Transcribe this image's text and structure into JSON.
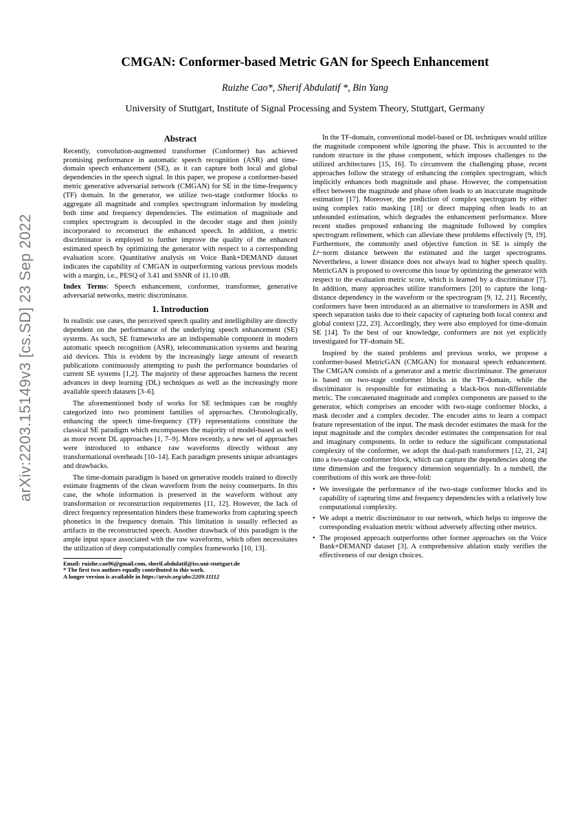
{
  "arxiv_stamp": "arXiv:2203.15149v3  [cs.SD]  23 Sep 2022",
  "title_text": "CMGAN: Conformer-based Metric GAN for Speech Enhancement",
  "authors_text": "Ruizhe Cao*, Sherif Abdulatif *, Bin Yang",
  "affiliation": "University of Stuttgart, Institute of Signal Processing and System Theory, Stuttgart, Germany",
  "abstract_head": "Abstract",
  "abstract_body": "Recently, convolution-augmented transformer (Conformer) has achieved promising performance in automatic speech recognition (ASR) and time-domain speech enhancement (SE), as it can capture both local and global dependencies in the speech signal. In this paper, we propose a conformer-based metric generative adversarial network (CMGAN) for SE in the time-frequency (TF) domain. In the generator, we utilize two-stage conformer blocks to aggregate all magnitude and complex spectrogram information by modeling both time and frequency dependencies. The estimation of magnitude and complex spectrogram is decoupled in the decoder stage and then jointly incorporated to reconstruct the enhanced speech. In addition, a metric discriminator is employed to further improve the quality of the enhanced estimated speech by optimizing the generator with respect to a corresponding evaluation score. Quantitative analysis on Voice Bank+DEMAND dataset indicates the capability of CMGAN in outperforming various previous models with a margin, i.e., PESQ of 3.41 and SSNR of 11.10 dB.",
  "index_terms_label": "Index Terms",
  "index_terms_body": ": Speech enhancement, conformer, transformer, generative adversarial networks, metric discriminator.",
  "section1_head": "1. Introduction",
  "intro_p1": "In realistic use cases, the perceived speech quality and intelligibility are directly dependent on the performance of the underlying speech enhancement (SE) systems. As such, SE frameworks are an indispensable component in modern automatic speech recognition (ASR), telecommunication systems and hearing aid devices. This is evident by the increasingly large amount of research publications continuously attempting to push the performance boundaries of current SE systems [1,2]. The majority of these approaches harness the recent advances in deep learning (DL) techniques as well as the increasingly more available speech datasets [3–6].",
  "intro_p2": "The aforementioned body of works for SE techniques can be roughly categorized into two prominent families of approaches. Chronologically, enhancing the speech time-frequency (TF) representations constitute the classical SE paradigm which encompasses the majority of model-based as well as more recent DL approaches [1, 7–9]. More recently, a new set of approaches were introduced to enhance raw waveforms directly without any transformational overheads [10–14]. Each paradigm presents unique advantages and drawbacks.",
  "intro_p3": "The time-domain paradigm is based on generative models trained to directly estimate fragments of the clean waveform from the noisy counterparts. In this case, the whole information is preserved in the waveform without any transformation or reconstruction requirements [11, 12]. However, the lack of direct frequency representation hinders these frameworks from capturing speech phonetics in the frequency domain. This limitation is usually reflected as artifacts in the reconstructed speech. Another drawback of this paradigm is the ample input space associated with the raw waveforms, which often necessitates the utilization of deep computationally complex frameworks [10, 13].",
  "col2_p1_a": "In the TF-domain, conventional model-based or DL techniques would utilize the magnitude component while ignoring the phase. This is accounted to the random structure in the phase component, which imposes challenges to the utilized architectures [15, 16]. To circumvent the challenging phase, recent approaches follow the strategy of enhancing the complex spectrogram, which implicitly enhances both magnitude and phase. However, the compensation effect between the magnitude and phase often leads to an inaccurate magnitude estimation [17]. Moreover, the prediction of complex spectrogram by either using complex ratio masking [18] or direct mapping often leads to an unbounded estimation, which degrades the enhancement performance. More recent studies proposed enhancing the magnitude followed by complex spectrogram refinement, which can alleviate these problems effectively [9, 19]. Furthermore, the commonly used objective function in SE is simply the ",
  "col2_p1_lp": "Lᵖ",
  "col2_p1_b": "−norm distance between the estimated and the target spectrograms. Nevertheless, a lower distance does not always lead to higher speech quality. MetricGAN is proposed to overcome this issue by optimizing the generator with respect to the evaluation metric score, which is learned by a discriminator [7]. In addition, many approaches utilize transformers [20] to capture the long-distance dependency in the waveform or the spectrogram [9, 12, 21]. Recently, conformers have been introduced as an alternative to transformers in ASR and speech separation tasks due to their capacity of capturing both local context and global context [22, 23]. Accordingly, they were also employed for time-domain SE [14]. To the best of our knowledge, conformers are not yet explicitly investigated for TF-domain SE.",
  "col2_p2": "Inspired by the stated problems and previous works, we propose a conformer-based MetricGAN (CMGAN) for monaural speech enhancement. The CMGAN consists of a generator and a metric discriminator. The generator is based on two-stage conformer blocks in the TF-domain, while the discriminator is responsible for estimating a black-box non-differentiable metric. The concatenated magnitude and complex components are passed to the generator, which comprises an encoder with two-stage conformer blocks, a mask decoder and a complex decoder. The encoder aims to learn a compact feature representation of the input. The mask decoder estimates the mask for the input magnitude and the complex decoder estimates the compensation for real and imaginary components. In order to reduce the significant computational complexity of the conformer, we adopt the dual-path transformers [12, 21, 24] into a two-stage conformer block, which can capture the dependencies along the time dimension and the frequency dimension sequentially. In a nutshell, the contributions of this work are three-fold:",
  "bullet1": "We investigate the performance of the two-stage conformer blocks and its capability of capturing time and frequency dependencies with a relatively low computational complexity.",
  "bullet2": "We adopt a metric discriminator to our network, which helps to improve the corresponding evaluation metric without adversely affecting other metrics.",
  "bullet3": "The proposed approach outperforms other former approaches on the Voice Bank+DEMAND dataset [3]. A comprehensive ablation study verifies the effectiveness of our design choices.",
  "footnote_email_label": "Email: ",
  "footnote_email": "ruizhe.cao96@gmail.com, sherif.abdulatif@iss.uni-stuttgart.de",
  "footnote_star": "* The first two authors equally contributed to this work.",
  "footnote_longer_label": "A longer version is available in ",
  "footnote_longer_url": "https://arxiv.org/abs/2209.11112",
  "fontsizes": {
    "title": 18.8,
    "authors": 14.4,
    "affil": 14.0,
    "section_head": 12.8,
    "body": 10.6,
    "footnote": 8.6
  },
  "colors": {
    "text": "#000000",
    "background": "#ffffff",
    "arxiv_stamp": "#7a7a7a"
  }
}
